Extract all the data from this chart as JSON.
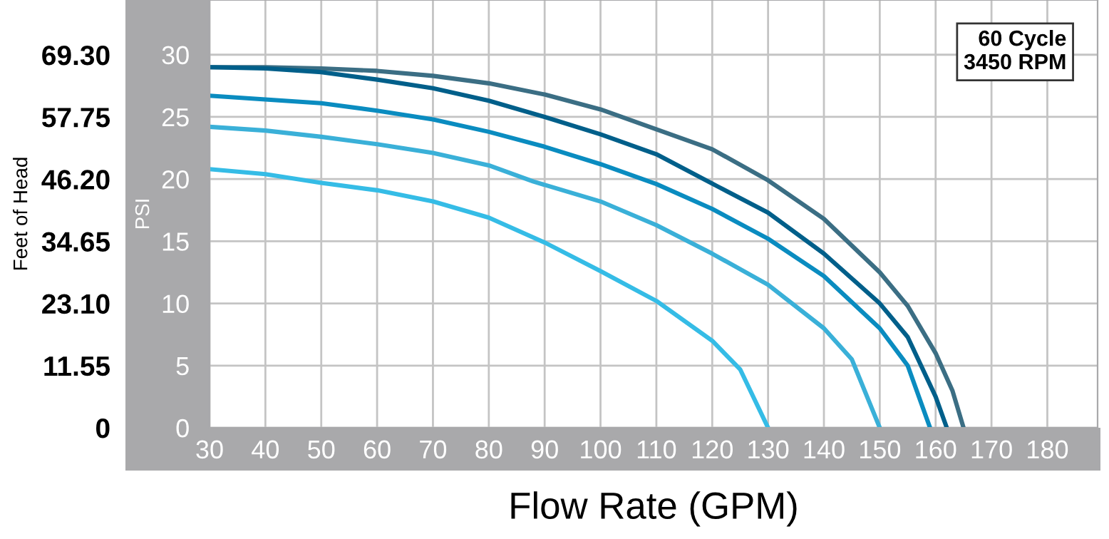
{
  "chart_data": {
    "type": "line",
    "xlabel": "Flow Rate (GPM)",
    "ylabel": "PSI",
    "y2label": "Feet of Head",
    "annotations": [
      "60 Cycle\n3450 RPM"
    ],
    "xlim": [
      30,
      189
    ],
    "xticks": [
      30,
      40,
      50,
      60,
      70,
      80,
      90,
      100,
      110,
      120,
      130,
      140,
      150,
      160,
      170,
      180
    ],
    "ylim": [
      0,
      34.4
    ],
    "yticks": [
      0,
      5,
      10,
      15,
      20,
      25,
      30
    ],
    "y2lim": [
      0,
      79.5
    ],
    "y2ticks": [
      0,
      11.55,
      {
        "value": 23.1,
        "label": "23.10"
      },
      34.65,
      {
        "value": 46.2,
        "label": "46.20"
      },
      57.75,
      {
        "value": 69.3,
        "label": "69.30"
      }
    ],
    "grid": true,
    "legend": false,
    "marker": "none",
    "line_style": "solid",
    "series": [
      {
        "color": "#3b6e84",
        "x": [
          30,
          40,
          50,
          60,
          70,
          80,
          90,
          100,
          110,
          120,
          130,
          140,
          150,
          155,
          160,
          163,
          165
        ],
        "values": [
          29,
          29,
          28.9,
          28.7,
          28.3,
          27.7,
          26.8,
          25.6,
          24.0,
          22.4,
          19.9,
          16.8,
          12.5,
          9.8,
          6,
          3,
          0
        ]
      },
      {
        "color": "#005f8a",
        "x": [
          30,
          40,
          50,
          60,
          70,
          80,
          90,
          100,
          110,
          121,
          130,
          140,
          150,
          155,
          160,
          162
        ],
        "values": [
          29,
          28.9,
          28.6,
          28,
          27.3,
          26.3,
          25,
          23.6,
          22,
          19.4,
          17.3,
          14,
          10,
          7.3,
          2.5,
          0
        ]
      },
      {
        "color": "#0a8cc0",
        "x": [
          30,
          40,
          50,
          60,
          70,
          80,
          90,
          100,
          110,
          120,
          130,
          140,
          150,
          155,
          159
        ],
        "values": [
          26.7,
          26.4,
          26.1,
          25.5,
          24.8,
          23.8,
          22.6,
          21.2,
          19.6,
          17.6,
          15.2,
          12.2,
          8,
          5,
          0
        ]
      },
      {
        "color": "#3ab0d8",
        "x": [
          30,
          40,
          50,
          60,
          70,
          80,
          88,
          100,
          110,
          120,
          130,
          140,
          145,
          150
        ],
        "values": [
          24.2,
          23.9,
          23.4,
          22.8,
          22.1,
          21.1,
          19.8,
          18.2,
          16.3,
          14,
          11.5,
          8,
          5.5,
          0
        ]
      },
      {
        "color": "#35bce6",
        "x": [
          30,
          40,
          50,
          60,
          70,
          80,
          90,
          100,
          110,
          120,
          125,
          130
        ],
        "values": [
          20.8,
          20.4,
          19.7,
          19.1,
          18.2,
          16.9,
          14.9,
          12.6,
          10.2,
          7,
          4.7,
          0
        ]
      }
    ]
  }
}
